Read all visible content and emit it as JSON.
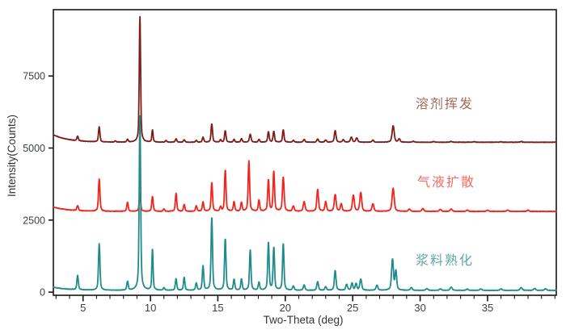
{
  "figure": {
    "background": "#ffffff"
  },
  "axes": {
    "frame_color": "#161616",
    "tick_color": "#161616",
    "tick_label_color": "#3b4048",
    "title_color": "#343434"
  },
  "chart_data": {
    "type": "line",
    "title": "",
    "xlabel": "Two-Theta (deg)",
    "ylabel": "Intensity(Counts)",
    "xlim": [
      2.8,
      40.1
    ],
    "ylim": [
      -110,
      9800
    ],
    "x_major_ticks": [
      5,
      10,
      15,
      20,
      25,
      30,
      35
    ],
    "x_minor_step": 1,
    "y_major_ticks": [
      0,
      2500,
      5000,
      7500
    ],
    "grid": false,
    "legend_position": "inline-right-of-each-trace",
    "peak_format": "[two_theta_deg, height_above_baseline_counts, half_width_deg]",
    "draw_order": [
      1,
      0,
      2
    ],
    "series": [
      {
        "name": "溶剂挥发",
        "slug": "solvent-evaporation",
        "color": "#7d1d18",
        "label_color": "#9d6d58",
        "baseline": 5200,
        "left_decay": 260,
        "noise": 9,
        "peaks": [
          [
            4.6,
            160,
            0.07
          ],
          [
            6.2,
            520,
            0.07
          ],
          [
            7.4,
            40,
            0.07
          ],
          [
            8.3,
            95,
            0.07
          ],
          [
            9.22,
            4350,
            0.065
          ],
          [
            10.15,
            420,
            0.06
          ],
          [
            11.15,
            60,
            0.07
          ],
          [
            11.9,
            115,
            0.07
          ],
          [
            12.5,
            90,
            0.07
          ],
          [
            13.4,
            60,
            0.07
          ],
          [
            13.9,
            175,
            0.07
          ],
          [
            14.55,
            640,
            0.07
          ],
          [
            15.2,
            80,
            0.07
          ],
          [
            15.55,
            400,
            0.07
          ],
          [
            16.2,
            95,
            0.07
          ],
          [
            16.75,
            125,
            0.07
          ],
          [
            17.4,
            275,
            0.08
          ],
          [
            18.05,
            95,
            0.07
          ],
          [
            18.75,
            365,
            0.07
          ],
          [
            19.15,
            375,
            0.07
          ],
          [
            19.85,
            430,
            0.07
          ],
          [
            20.6,
            60,
            0.08
          ],
          [
            21.4,
            95,
            0.08
          ],
          [
            22.4,
            115,
            0.08
          ],
          [
            23.0,
            75,
            0.08
          ],
          [
            23.7,
            400,
            0.08
          ],
          [
            24.3,
            90,
            0.08
          ],
          [
            24.9,
            175,
            0.09
          ],
          [
            25.3,
            150,
            0.09
          ],
          [
            26.5,
            65,
            0.09
          ],
          [
            28.0,
            570,
            0.1
          ],
          [
            28.45,
            110,
            0.09
          ],
          [
            29.5,
            30,
            0.1
          ],
          [
            31.0,
            25,
            0.1
          ],
          [
            32.3,
            30,
            0.1
          ],
          [
            34.0,
            20,
            0.1
          ],
          [
            36.0,
            20,
            0.1
          ],
          [
            37.5,
            25,
            0.1
          ]
        ]
      },
      {
        "name": "气液扩散",
        "slug": "vapor-diffusion",
        "color": "#f1251e",
        "label_color": "#f26b60",
        "baseline": 2800,
        "left_decay": 150,
        "noise": 11,
        "peaks": [
          [
            4.6,
            175,
            0.07
          ],
          [
            6.2,
            1120,
            0.07
          ],
          [
            8.3,
            310,
            0.07
          ],
          [
            9.22,
            620,
            0.07
          ],
          [
            10.15,
            520,
            0.07
          ],
          [
            11.0,
            85,
            0.07
          ],
          [
            11.9,
            620,
            0.07
          ],
          [
            12.5,
            235,
            0.07
          ],
          [
            13.4,
            195,
            0.07
          ],
          [
            13.9,
            325,
            0.07
          ],
          [
            14.55,
            1000,
            0.07
          ],
          [
            15.2,
            150,
            0.07
          ],
          [
            15.55,
            1430,
            0.07
          ],
          [
            16.2,
            335,
            0.07
          ],
          [
            16.75,
            300,
            0.07
          ],
          [
            17.3,
            1740,
            0.07
          ],
          [
            18.05,
            385,
            0.07
          ],
          [
            18.75,
            1090,
            0.07
          ],
          [
            19.15,
            1390,
            0.07
          ],
          [
            19.85,
            1190,
            0.08
          ],
          [
            20.6,
            185,
            0.08
          ],
          [
            21.4,
            330,
            0.09
          ],
          [
            22.4,
            760,
            0.08
          ],
          [
            23.0,
            330,
            0.08
          ],
          [
            23.7,
            580,
            0.09
          ],
          [
            24.15,
            260,
            0.08
          ],
          [
            25.05,
            560,
            0.09
          ],
          [
            25.6,
            650,
            0.09
          ],
          [
            26.5,
            260,
            0.09
          ],
          [
            28.0,
            800,
            0.1
          ],
          [
            29.2,
            75,
            0.1
          ],
          [
            30.2,
            95,
            0.1
          ],
          [
            31.5,
            65,
            0.1
          ],
          [
            32.3,
            85,
            0.1
          ],
          [
            33.5,
            45,
            0.1
          ],
          [
            35.0,
            45,
            0.1
          ],
          [
            36.5,
            45,
            0.1
          ],
          [
            38.0,
            45,
            0.1
          ]
        ]
      },
      {
        "name": "浆料熟化",
        "slug": "slurry-aging",
        "color": "#1f8c8b",
        "label_color": "#61a7a5",
        "baseline": 60,
        "left_decay": 110,
        "noise": 8,
        "peaks": [
          [
            4.6,
            490,
            0.07
          ],
          [
            6.2,
            1620,
            0.07
          ],
          [
            8.3,
            300,
            0.07
          ],
          [
            9.22,
            6050,
            0.07
          ],
          [
            10.15,
            1430,
            0.06
          ],
          [
            11.0,
            90,
            0.07
          ],
          [
            11.9,
            390,
            0.07
          ],
          [
            12.5,
            445,
            0.07
          ],
          [
            13.4,
            250,
            0.07
          ],
          [
            13.9,
            845,
            0.07
          ],
          [
            14.55,
            2545,
            0.07
          ],
          [
            15.55,
            1795,
            0.07
          ],
          [
            16.2,
            375,
            0.07
          ],
          [
            16.75,
            385,
            0.07
          ],
          [
            17.4,
            1395,
            0.07
          ],
          [
            18.05,
            270,
            0.07
          ],
          [
            18.75,
            1665,
            0.07
          ],
          [
            19.15,
            1485,
            0.07
          ],
          [
            19.85,
            1625,
            0.07
          ],
          [
            20.6,
            145,
            0.08
          ],
          [
            21.4,
            185,
            0.08
          ],
          [
            22.4,
            300,
            0.08
          ],
          [
            23.0,
            125,
            0.08
          ],
          [
            23.7,
            685,
            0.08
          ],
          [
            24.55,
            200,
            0.09
          ],
          [
            24.95,
            245,
            0.08
          ],
          [
            25.25,
            230,
            0.08
          ],
          [
            25.6,
            385,
            0.09
          ],
          [
            26.8,
            175,
            0.09
          ],
          [
            27.95,
            1070,
            0.09
          ],
          [
            28.2,
            660,
            0.08
          ],
          [
            29.35,
            95,
            0.09
          ],
          [
            30.5,
            60,
            0.1
          ],
          [
            31.5,
            50,
            0.1
          ],
          [
            32.3,
            115,
            0.1
          ],
          [
            33.5,
            45,
            0.1
          ],
          [
            34.5,
            50,
            0.1
          ],
          [
            36.0,
            50,
            0.1
          ],
          [
            37.5,
            95,
            0.1
          ],
          [
            38.5,
            65,
            0.1
          ],
          [
            39.3,
            55,
            0.1
          ]
        ]
      }
    ]
  }
}
